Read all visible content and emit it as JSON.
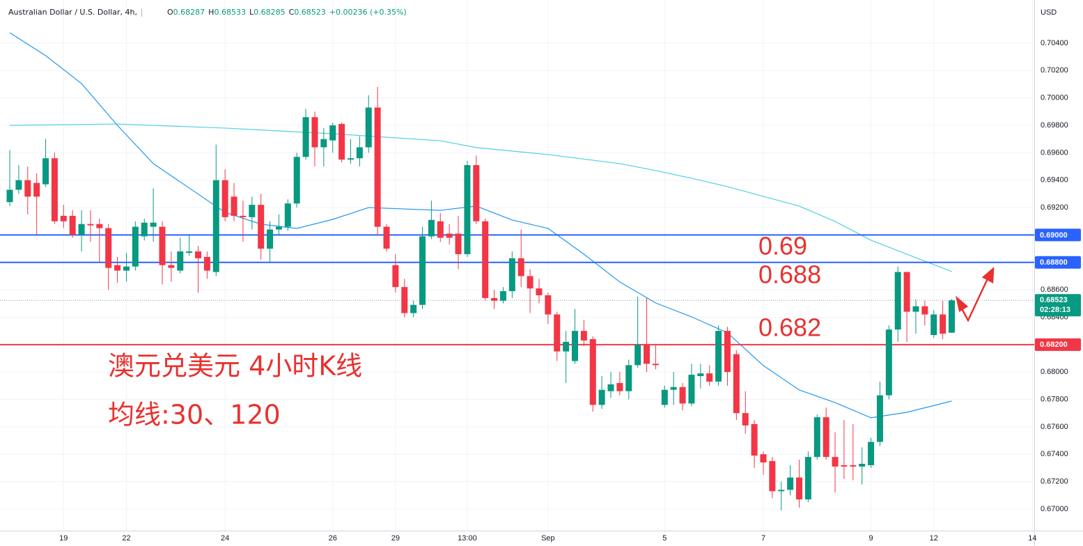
{
  "header": {
    "title": "Australian Dollar / U.S. Dollar, 4h,",
    "ohlc": [
      {
        "label": "O",
        "value": "0.68287"
      },
      {
        "label": "H",
        "value": "0.68533"
      },
      {
        "label": "L",
        "value": "0.68285"
      },
      {
        "label": "C",
        "value": "0.68523"
      }
    ],
    "change": "+0.00236 (+0.35%)"
  },
  "annotations": [
    "0.69",
    "0.688",
    "0.682"
  ],
  "caption": [
    "澳元兑美元 4小时K线",
    "均线:30、120"
  ],
  "chart_data": {
    "type": "candlestick",
    "currency": "USD",
    "up_color": "#089981",
    "down_color": "#f23645",
    "grid": true,
    "xlim": [
      -0.7,
      114.2
    ],
    "ylim": [
      0.66842,
      0.70715
    ],
    "xticks": [
      {
        "value": 6,
        "label": "19"
      },
      {
        "value": 13,
        "label": "22"
      },
      {
        "value": 24,
        "label": "24"
      },
      {
        "value": 36,
        "label": "26"
      },
      {
        "value": 43,
        "label": "29"
      },
      {
        "value": 51,
        "label": "13:00"
      },
      {
        "value": 60,
        "label": "Sep"
      },
      {
        "value": 73,
        "label": "5"
      },
      {
        "value": 84,
        "label": "7"
      },
      {
        "value": 96,
        "label": "9"
      },
      {
        "value": 103,
        "label": "12"
      },
      {
        "value": 114,
        "label": "14"
      }
    ],
    "yticks": [
      {
        "value": 0.704,
        "label": "0.70400"
      },
      {
        "value": 0.702,
        "label": "0.70200"
      },
      {
        "value": 0.7,
        "label": "0.70000"
      },
      {
        "value": 0.698,
        "label": "0.69800"
      },
      {
        "value": 0.696,
        "label": "0.69600"
      },
      {
        "value": 0.694,
        "label": "0.69400"
      },
      {
        "value": 0.692,
        "label": "0.69200"
      },
      {
        "value": 0.686,
        "label": "0.68600"
      },
      {
        "value": 0.684,
        "label": "0.68400"
      },
      {
        "value": 0.68,
        "label": "0.68000"
      },
      {
        "value": 0.678,
        "label": "0.67800"
      },
      {
        "value": 0.676,
        "label": "0.67600"
      },
      {
        "value": 0.674,
        "label": "0.67400"
      },
      {
        "value": 0.672,
        "label": "0.67200"
      },
      {
        "value": 0.67,
        "label": "0.67000"
      }
    ],
    "levels": [
      {
        "value": 0.69,
        "label": "0.69000",
        "color": "#2962ff"
      },
      {
        "value": 0.688,
        "label": "0.68800",
        "color": "#2962ff"
      },
      {
        "value": 0.682,
        "label": "0.68200",
        "color": "#f23645"
      }
    ],
    "last_price": {
      "value": 0.68523,
      "label": "0.68523",
      "countdown": "02:28:13",
      "color": "#089981"
    },
    "open": [
      0.6924,
      0.6933,
      0.694,
      0.6938,
      0.6937,
      0.6956,
      0.6914,
      0.6914,
      0.69,
      0.6908,
      0.6908,
      0.6905,
      0.6878,
      0.6874,
      0.6877,
      0.6899,
      0.6906,
      0.6906,
      0.6878,
      0.6874,
      0.6887,
      0.6888,
      0.6884,
      0.6873,
      0.694,
      0.6928,
      0.6914,
      0.6913,
      0.6922,
      0.689,
      0.6904,
      0.6906,
      0.6923,
      0.6957,
      0.6986,
      0.6964,
      0.6969,
      0.6981,
      0.6955,
      0.6956,
      0.6964,
      0.6993,
      0.6906,
      0.6878,
      0.6862,
      0.6843,
      0.6849,
      0.6899,
      0.691,
      0.6901,
      0.6901,
      0.6886,
      0.6951,
      0.691,
      0.6854,
      0.6852,
      0.6859,
      0.6883,
      0.687,
      0.6861,
      0.6856,
      0.6842,
      0.6815,
      0.6808,
      0.683,
      0.6824,
      0.6776,
      0.6786,
      0.6792,
      0.6786,
      0.6805,
      0.682,
      0.6806,
      0.6776,
      0.6787,
      0.6789,
      0.6777,
      0.6797,
      0.6799,
      0.6793,
      0.683,
      0.6813,
      0.677,
      0.6762,
      0.674,
      0.6735,
      0.6713,
      0.6714,
      0.6723,
      0.6707,
      0.6738,
      0.6767,
      0.6738,
      0.6732,
      0.6732,
      0.6731,
      0.6732,
      0.6749,
      0.6783,
      0.6831,
      0.6873,
      0.6844,
      0.6848,
      0.6827,
      0.6842,
      0.68287
    ],
    "high": [
      0.6962,
      0.6951,
      0.695,
      0.6945,
      0.697,
      0.696,
      0.6922,
      0.6918,
      0.6918,
      0.6918,
      0.6912,
      0.6908,
      0.6884,
      0.6887,
      0.691,
      0.6912,
      0.6934,
      0.691,
      0.6888,
      0.6898,
      0.69,
      0.6892,
      0.6888,
      0.6966,
      0.6948,
      0.6938,
      0.6925,
      0.6928,
      0.693,
      0.691,
      0.6915,
      0.6926,
      0.696,
      0.6992,
      0.699,
      0.6978,
      0.6982,
      0.6982,
      0.697,
      0.6972,
      0.7002,
      0.7008,
      0.6908,
      0.6886,
      0.6868,
      0.6852,
      0.6906,
      0.6925,
      0.6916,
      0.6908,
      0.6914,
      0.6954,
      0.6958,
      0.6912,
      0.686,
      0.6862,
      0.6888,
      0.6904,
      0.6875,
      0.6868,
      0.6858,
      0.6844,
      0.683,
      0.6846,
      0.6838,
      0.6826,
      0.6797,
      0.68,
      0.68,
      0.6809,
      0.6855,
      0.6854,
      0.682,
      0.679,
      0.68,
      0.6792,
      0.6806,
      0.6806,
      0.6805,
      0.6834,
      0.6833,
      0.6816,
      0.6786,
      0.6765,
      0.6742,
      0.6738,
      0.672,
      0.6732,
      0.6736,
      0.6742,
      0.6769,
      0.6774,
      0.6756,
      0.6765,
      0.6762,
      0.6745,
      0.6752,
      0.6793,
      0.6834,
      0.6877,
      0.6873,
      0.6853,
      0.6852,
      0.6845,
      0.6852,
      0.68533
    ],
    "low": [
      0.6921,
      0.693,
      0.6915,
      0.69,
      0.6935,
      0.6908,
      0.6905,
      0.6898,
      0.6888,
      0.6895,
      0.688,
      0.686,
      0.6865,
      0.6866,
      0.6874,
      0.6896,
      0.6895,
      0.6864,
      0.6866,
      0.6872,
      0.6885,
      0.6858,
      0.6868,
      0.687,
      0.691,
      0.691,
      0.6895,
      0.6904,
      0.6882,
      0.688,
      0.69,
      0.6903,
      0.692,
      0.6955,
      0.695,
      0.695,
      0.696,
      0.6953,
      0.6952,
      0.695,
      0.696,
      0.69,
      0.6888,
      0.6858,
      0.684,
      0.684,
      0.6846,
      0.6897,
      0.6895,
      0.6893,
      0.6875,
      0.6884,
      0.6908,
      0.6852,
      0.6846,
      0.685,
      0.6854,
      0.6862,
      0.6843,
      0.685,
      0.6835,
      0.6808,
      0.6792,
      0.6806,
      0.6819,
      0.6771,
      0.6773,
      0.6781,
      0.6783,
      0.678,
      0.6803,
      0.68,
      0.6802,
      0.6774,
      0.6776,
      0.6772,
      0.6775,
      0.6788,
      0.679,
      0.679,
      0.679,
      0.6765,
      0.6755,
      0.673,
      0.6725,
      0.6708,
      0.6699,
      0.671,
      0.6701,
      0.6705,
      0.6736,
      0.6736,
      0.6712,
      0.6722,
      0.6721,
      0.6718,
      0.673,
      0.6746,
      0.678,
      0.6822,
      0.6822,
      0.6828,
      0.6834,
      0.6825,
      0.6824,
      0.68285
    ],
    "close": [
      0.6933,
      0.694,
      0.6928,
      0.6928,
      0.6956,
      0.691,
      0.691,
      0.69,
      0.6908,
      0.6907,
      0.6905,
      0.6876,
      0.6874,
      0.6877,
      0.6906,
      0.6909,
      0.6909,
      0.6878,
      0.6876,
      0.6888,
      0.6888,
      0.6883,
      0.6874,
      0.694,
      0.6913,
      0.6914,
      0.6913,
      0.6922,
      0.689,
      0.6904,
      0.6906,
      0.6923,
      0.6957,
      0.6986,
      0.6964,
      0.697,
      0.698,
      0.6955,
      0.6956,
      0.6964,
      0.6993,
      0.6906,
      0.689,
      0.6862,
      0.6843,
      0.6849,
      0.6899,
      0.6911,
      0.6898,
      0.6898,
      0.6886,
      0.6951,
      0.691,
      0.6854,
      0.6852,
      0.6859,
      0.6883,
      0.687,
      0.6861,
      0.6856,
      0.6842,
      0.6815,
      0.6822,
      0.683,
      0.6823,
      0.6776,
      0.6787,
      0.6791,
      0.6786,
      0.6805,
      0.682,
      0.6806,
      0.6805,
      0.6787,
      0.6789,
      0.6777,
      0.6798,
      0.6799,
      0.6793,
      0.683,
      0.68,
      0.677,
      0.6761,
      0.6739,
      0.6734,
      0.6713,
      0.6714,
      0.6723,
      0.6707,
      0.6738,
      0.6767,
      0.6738,
      0.6731,
      0.6731,
      0.6731,
      0.6733,
      0.6749,
      0.6783,
      0.6831,
      0.6873,
      0.6844,
      0.6848,
      0.6842,
      0.6842,
      0.6828,
      0.68523
    ],
    "series": [
      {
        "color": "#2196f3",
        "x": [
          0,
          4,
          8,
          12,
          16,
          20,
          24,
          28,
          32,
          36,
          40,
          44,
          48,
          52,
          56,
          60,
          64,
          68,
          72,
          76,
          80,
          84,
          88,
          92,
          96,
          100,
          105
        ],
        "values": [
          0.70476,
          0.70309,
          0.70105,
          0.698,
          0.69521,
          0.69343,
          0.69165,
          0.69079,
          0.69048,
          0.69114,
          0.692,
          0.6919,
          0.6918,
          0.69211,
          0.69109,
          0.69048,
          0.6886,
          0.68657,
          0.68504,
          0.68403,
          0.68286,
          0.68047,
          0.67869,
          0.67777,
          0.67666,
          0.67706,
          0.67788
        ]
      },
      {
        "color": "#4dd0e1",
        "x": [
          0,
          12,
          24,
          36,
          48,
          52,
          60,
          68,
          72,
          76,
          80,
          84,
          88,
          92,
          96,
          100,
          105
        ],
        "values": [
          0.698,
          0.6981,
          0.6978,
          0.69739,
          0.69688,
          0.69638,
          0.69587,
          0.69521,
          0.6947,
          0.69414,
          0.69353,
          0.69282,
          0.69211,
          0.69099,
          0.68962,
          0.6886,
          0.68733
        ]
      }
    ]
  }
}
